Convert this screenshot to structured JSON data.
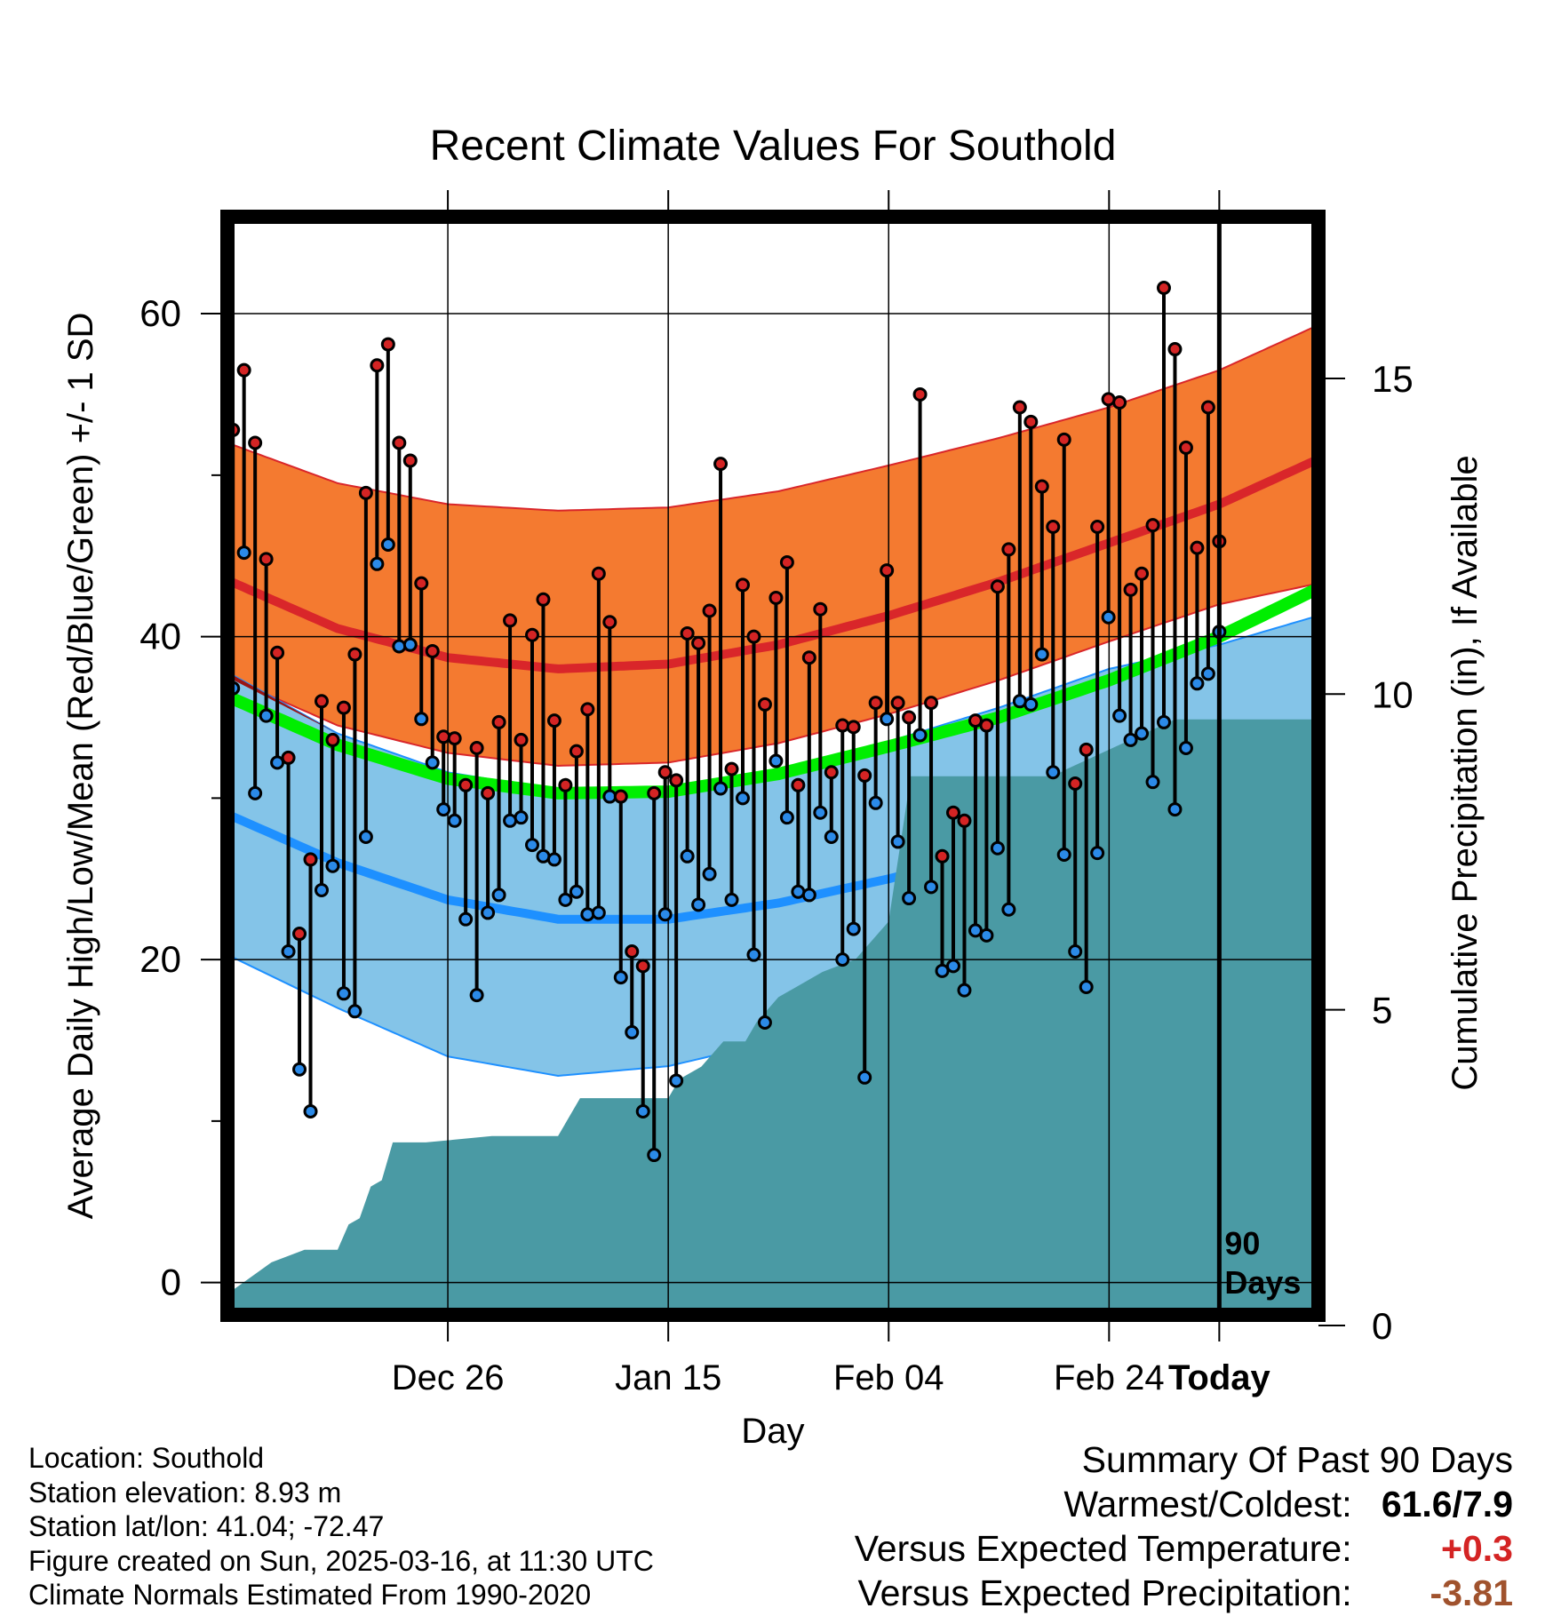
{
  "chart_data": {
    "type": "line",
    "title": "Recent Climate Values For Southold",
    "xlabel": "Day",
    "ylabel": "Average Daily High/Low/Mean (Red/Blue/Green) +/- 1 SD",
    "y2label": "Cumulative Precipitation (in), If Available",
    "xticks": [
      "Dec 26",
      "Jan 15",
      "Feb 04",
      "Feb 24",
      "Today"
    ],
    "xlim_days": [
      -90,
      9
    ],
    "ylim": [
      -2,
      66
    ],
    "yticks": [
      0,
      20,
      40,
      60
    ],
    "y2lim": [
      0,
      16
    ],
    "y2ticks": [
      0,
      5,
      10,
      15
    ],
    "today_label": "90 Days",
    "grid": true,
    "colors": {
      "high_band": "#f47a30",
      "high_normal": "#d9262a",
      "low_band": "#84c4e8",
      "low_normal": "#1e90ff",
      "mean_normal": "#00ee00",
      "overlap_band": "#9b1414",
      "high_point": "#d42424",
      "low_point": "#2b8ae8",
      "precip": "#4a9aa4"
    },
    "normals": {
      "x": [
        -90,
        -80,
        -70,
        -60,
        -50,
        -40,
        -30,
        -20,
        -10,
        0,
        9
      ],
      "high_mean": [
        43.5,
        40.5,
        38.7,
        38.0,
        38.3,
        39.5,
        41.3,
        43.4,
        45.8,
        48.2,
        51.0
      ],
      "high_upper": [
        52.0,
        49.5,
        48.2,
        47.8,
        48.0,
        49.0,
        50.6,
        52.3,
        54.2,
        56.5,
        59.3
      ],
      "high_lower": [
        37.5,
        34.5,
        32.8,
        32.0,
        32.2,
        33.4,
        35.2,
        37.3,
        39.7,
        42.0,
        43.3
      ],
      "low_mean": [
        29.0,
        26.0,
        23.7,
        22.5,
        22.5,
        23.5,
        25.0,
        26.7,
        28.9,
        31.5,
        34.5
      ],
      "low_upper": [
        37.8,
        34.0,
        31.6,
        30.5,
        30.6,
        31.7,
        33.5,
        35.6,
        38.0,
        39.5,
        41.3
      ],
      "low_lower": [
        20.3,
        17.0,
        14.0,
        12.8,
        13.4,
        15.0,
        16.7,
        18.3,
        20.8,
        23.7,
        27.5
      ],
      "mean": [
        36.3,
        33.3,
        31.2,
        30.3,
        30.4,
        31.5,
        33.2,
        35.0,
        37.3,
        40.0,
        43.0
      ]
    },
    "series": [
      {
        "name": "High",
        "values": [
          52.8,
          56.5,
          52.0,
          44.8,
          39.0,
          32.5,
          21.6,
          26.2,
          36.0,
          33.6,
          35.6,
          38.9,
          48.9,
          56.8,
          58.1,
          52.0,
          50.9,
          43.3,
          39.1,
          33.8,
          33.7,
          30.8,
          33.1,
          30.3,
          34.7,
          41.0,
          33.6,
          40.1,
          42.3,
          34.8,
          30.8,
          32.9,
          35.5,
          43.9,
          40.9,
          30.1,
          20.5,
          19.6,
          30.3,
          31.6,
          31.1,
          40.2,
          39.6,
          41.6,
          50.7,
          31.8,
          43.2,
          40.0,
          35.8,
          42.4,
          44.6,
          30.8,
          38.7,
          41.7,
          31.6,
          34.5,
          34.4,
          31.4,
          35.9,
          44.1,
          35.9,
          35.0,
          55.0,
          35.9,
          26.4,
          29.1,
          28.6,
          34.8,
          34.5,
          43.1,
          45.4,
          54.2,
          53.3,
          49.3,
          46.8,
          52.2,
          30.9,
          33.0,
          46.8,
          54.7,
          54.5,
          42.9,
          43.9,
          46.9,
          61.6,
          57.8,
          51.7,
          45.5,
          54.2,
          45.9
        ]
      },
      {
        "name": "Low",
        "values": [
          36.8,
          45.2,
          30.3,
          35.1,
          32.2,
          20.5,
          13.2,
          10.6,
          24.3,
          25.8,
          17.9,
          16.8,
          27.6,
          44.5,
          45.7,
          39.4,
          39.5,
          34.9,
          32.2,
          29.3,
          28.6,
          22.5,
          17.8,
          22.9,
          24.0,
          28.6,
          28.8,
          27.1,
          26.4,
          26.2,
          23.7,
          24.2,
          22.8,
          22.9,
          30.1,
          18.9,
          15.5,
          10.6,
          7.9,
          22.8,
          12.5,
          26.4,
          23.4,
          25.3,
          30.6,
          23.7,
          30.0,
          20.3,
          16.1,
          32.3,
          28.8,
          24.2,
          24.0,
          29.1,
          27.6,
          20.0,
          21.9,
          12.7,
          29.7,
          34.9,
          27.3,
          23.8,
          33.9,
          24.5,
          19.3,
          19.6,
          18.1,
          21.8,
          21.5,
          26.9,
          23.1,
          36.0,
          35.8,
          38.9,
          31.6,
          26.5,
          20.5,
          18.3,
          26.6,
          41.2,
          35.1,
          33.6,
          34.0,
          31.0,
          34.7,
          29.3,
          33.1,
          37.1,
          37.7,
          40.3
        ]
      },
      {
        "name": "Cumulative Precipitation",
        "axis": "y2",
        "x": [
          -90,
          -86,
          -83,
          -80,
          -79,
          -78,
          -77,
          -76,
          -75,
          -74,
          -72,
          -66,
          -60,
          -58,
          -52,
          -50,
          -49,
          -47,
          -45,
          -43,
          -42,
          -40,
          -38,
          -36,
          -33,
          -30,
          -28,
          -26,
          -15,
          -14,
          -4,
          0,
          9
        ],
        "values": [
          0.5,
          1.0,
          1.2,
          1.2,
          1.6,
          1.7,
          2.2,
          2.3,
          2.9,
          2.9,
          2.9,
          3.0,
          3.0,
          3.6,
          3.6,
          3.6,
          3.9,
          4.1,
          4.5,
          4.5,
          4.8,
          5.2,
          5.4,
          5.6,
          5.8,
          6.4,
          8.7,
          8.7,
          8.7,
          8.8,
          9.6,
          9.6,
          9.6
        ]
      }
    ]
  },
  "footer": {
    "location": "Location: Southold",
    "elevation": "Station elevation: 8.93 m",
    "latlon": "Station lat/lon: 41.04; -72.47",
    "created": "Figure created on Sun, 2025-03-16, at 11:30 UTC",
    "normals": "Climate Normals Estimated From 1990-2020"
  },
  "summary": {
    "title": "Summary Of Past 90 Days",
    "warm_cold_label": "Warmest/Coldest:",
    "warm_cold_value": "61.6/7.9",
    "vs_temp_label": "Versus Expected Temperature:",
    "vs_temp_value": "+0.3",
    "vs_temp_color": "#d42424",
    "vs_precip_label": "Versus Expected Precipitation:",
    "vs_precip_value": "-3.81",
    "vs_precip_color": "#a0522d"
  }
}
